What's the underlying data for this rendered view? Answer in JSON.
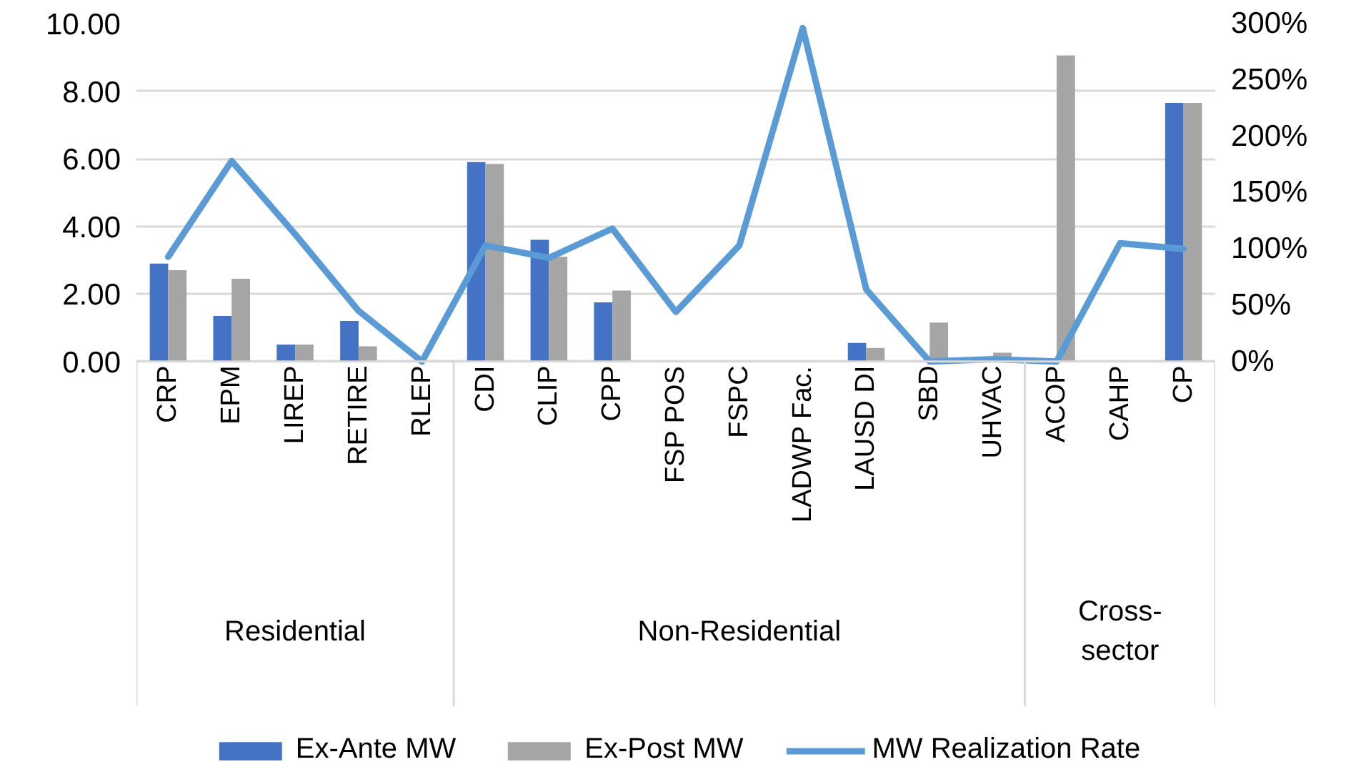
{
  "chart_data": {
    "type": "bar",
    "categories": [
      "CRP",
      "EPM",
      "LIREP",
      "RETIRE",
      "RLEP",
      "CDI",
      "CLIP",
      "CPP",
      "FSP POS",
      "FSPC",
      "LADWP Fac.",
      "LAUSD DI",
      "SBD",
      "UHVAC",
      "ACOP",
      "CAHP",
      "CP"
    ],
    "series": [
      {
        "name": "Ex-Ante MW",
        "color": "#4472c4",
        "values": [
          2.9,
          1.35,
          0.5,
          1.2,
          0,
          5.9,
          3.6,
          1.75,
          0,
          0,
          0,
          0.55,
          0,
          0,
          0,
          0,
          7.65
        ]
      },
      {
        "name": "Ex-Post MW",
        "color": "#a5a5a5",
        "values": [
          2.7,
          2.45,
          0.5,
          0.45,
          0,
          5.85,
          3.1,
          2.1,
          0,
          0,
          0,
          0.4,
          1.15,
          0.26,
          9.06,
          0,
          7.65
        ]
      },
      {
        "name": "MW Realization Rate",
        "color": "#5b9bd5",
        "type": "line",
        "axis": "y2",
        "values": [
          93,
          178,
          113,
          45,
          0,
          103,
          92,
          118,
          44,
          103,
          296,
          64,
          0,
          2,
          0,
          105,
          100
        ]
      }
    ],
    "annotations": [
      "Residential",
      "Non-Residential",
      "Cross-sector"
    ],
    "ylim": [
      0,
      10
    ],
    "yticks": [
      {
        "value": 0,
        "label": "0.00"
      },
      {
        "value": 2,
        "label": "2.00"
      },
      {
        "value": 4,
        "label": "4.00"
      },
      {
        "value": 6,
        "label": "6.00"
      },
      {
        "value": 8,
        "label": "8.00"
      },
      {
        "value": 10,
        "label": "10.00"
      }
    ],
    "y2lim": [
      0,
      300
    ],
    "y2ticks": [
      {
        "value": 0,
        "label": "0%"
      },
      {
        "value": 50,
        "label": "50%"
      },
      {
        "value": 100,
        "label": "100%"
      },
      {
        "value": 150,
        "label": "150%"
      },
      {
        "value": 200,
        "label": "200%"
      },
      {
        "value": 250,
        "label": "250%"
      },
      {
        "value": 300,
        "label": "300%"
      }
    ],
    "grid": "y",
    "legend": "bottom"
  }
}
